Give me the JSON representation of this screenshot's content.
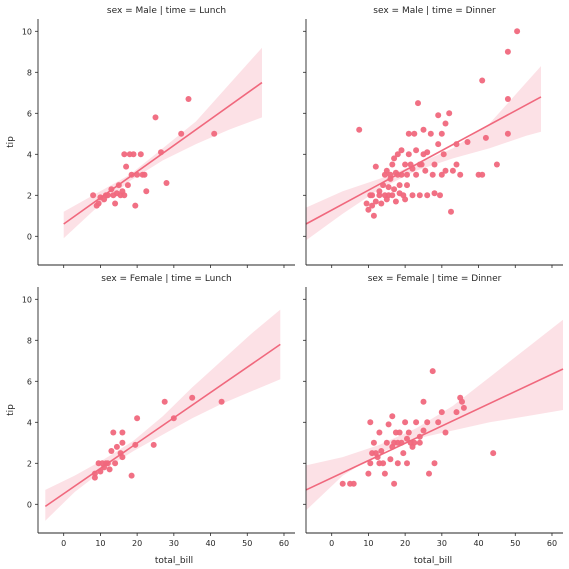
{
  "chart_data": {
    "type": "scatter",
    "xlabel": "total_bill",
    "ylabel": "tip",
    "xlim": [
      -7,
      63
    ],
    "ylim": [
      -1.4,
      10.6
    ],
    "xticks": [
      0,
      10,
      20,
      30,
      40,
      50,
      60
    ],
    "yticks": [
      0,
      2,
      4,
      6,
      8,
      10
    ],
    "colors": {
      "points": "#f0687d",
      "line": "#f0687d",
      "band": "#fbd7dd"
    },
    "facets": [
      {
        "title": "sex = Male | time = Lunch",
        "fit": {
          "x": [
            0,
            54
          ],
          "y": [
            0.6,
            7.5
          ]
        },
        "band": {
          "x": [
            0,
            9,
            18,
            27,
            36,
            45,
            54
          ],
          "lower": [
            -0.1,
            1.4,
            2.7,
            3.7,
            4.5,
            5.2,
            5.8
          ],
          "upper": [
            1.2,
            2.1,
            3.0,
            4.3,
            5.6,
            7.4,
            9.2
          ]
        },
        "points": [
          [
            8,
            2.0
          ],
          [
            9,
            1.5
          ],
          [
            9.5,
            1.6
          ],
          [
            10,
            1.9
          ],
          [
            11,
            1.8
          ],
          [
            11.5,
            2.0
          ],
          [
            12,
            2.0
          ],
          [
            13,
            2.3
          ],
          [
            13.5,
            2.0
          ],
          [
            14,
            1.6
          ],
          [
            14.5,
            2.1
          ],
          [
            15,
            2.5
          ],
          [
            15.5,
            2.0
          ],
          [
            16,
            2.2
          ],
          [
            16.5,
            2.0
          ],
          [
            16.5,
            4.0
          ],
          [
            17,
            3.4
          ],
          [
            17.5,
            2.5
          ],
          [
            18,
            4.0
          ],
          [
            18.5,
            3.0
          ],
          [
            19,
            4.0
          ],
          [
            19.5,
            1.5
          ],
          [
            20,
            3.0
          ],
          [
            21,
            4.0
          ],
          [
            21.5,
            3.0
          ],
          [
            22,
            3.0
          ],
          [
            22.5,
            2.2
          ],
          [
            25,
            5.8
          ],
          [
            26.5,
            4.1
          ],
          [
            28,
            2.6
          ],
          [
            32,
            5.0
          ],
          [
            34,
            6.7
          ],
          [
            41,
            5.0
          ]
        ]
      },
      {
        "title": "sex = Male | time = Dinner",
        "fit": {
          "x": [
            -7,
            57
          ],
          "y": [
            0.6,
            6.8
          ]
        },
        "band": {
          "x": [
            -7,
            3,
            13,
            23,
            33,
            43,
            53,
            57
          ],
          "lower": [
            -0.2,
            1.1,
            2.3,
            3.2,
            3.8,
            4.3,
            4.9,
            5.1
          ],
          "upper": [
            1.4,
            2.2,
            2.8,
            3.5,
            4.3,
            5.5,
            7.5,
            8.3
          ]
        },
        "points": [
          [
            7.5,
            5.2
          ],
          [
            9.5,
            1.6
          ],
          [
            10,
            1.3
          ],
          [
            10.5,
            2.0
          ],
          [
            11,
            1.5
          ],
          [
            11,
            2.0
          ],
          [
            11.5,
            1.0
          ],
          [
            12,
            3.4
          ],
          [
            12,
            1.7
          ],
          [
            13,
            2.0
          ],
          [
            13,
            2.2
          ],
          [
            13.5,
            1.6
          ],
          [
            14,
            2.5
          ],
          [
            14.5,
            3.0
          ],
          [
            14.5,
            2.0
          ],
          [
            15,
            1.8
          ],
          [
            15,
            3.2
          ],
          [
            15.5,
            2.4
          ],
          [
            15.5,
            2.0
          ],
          [
            16,
            3.0
          ],
          [
            16,
            2.8
          ],
          [
            16.5,
            3.5
          ],
          [
            16.5,
            2.0
          ],
          [
            17,
            3.8
          ],
          [
            17,
            2.3
          ],
          [
            17.5,
            1.7
          ],
          [
            17.5,
            3.1
          ],
          [
            18,
            3.0
          ],
          [
            18,
            4.0
          ],
          [
            18.5,
            2.5
          ],
          [
            18.5,
            2.1
          ],
          [
            19,
            4.2
          ],
          [
            19,
            3.0
          ],
          [
            19.5,
            2.0
          ],
          [
            20,
            3.5
          ],
          [
            20,
            1.8
          ],
          [
            20.5,
            2.5
          ],
          [
            20.5,
            3.0
          ],
          [
            21,
            5.0
          ],
          [
            21,
            4.0
          ],
          [
            21.5,
            3.5
          ],
          [
            22,
            2.0
          ],
          [
            22,
            3.3
          ],
          [
            22.5,
            5.0
          ],
          [
            23,
            4.2
          ],
          [
            23,
            3.0
          ],
          [
            23.5,
            6.5
          ],
          [
            24,
            2.0
          ],
          [
            24,
            3.5
          ],
          [
            24.5,
            3.5
          ],
          [
            25,
            4.0
          ],
          [
            25,
            5.2
          ],
          [
            25.5,
            3.2
          ],
          [
            26,
            4.1
          ],
          [
            26,
            2.0
          ],
          [
            27,
            5.0
          ],
          [
            27.5,
            3.0
          ],
          [
            28,
            2.1
          ],
          [
            28,
            3.5
          ],
          [
            29,
            5.9
          ],
          [
            29,
            4.5
          ],
          [
            29.5,
            2.0
          ],
          [
            30,
            5.0
          ],
          [
            30,
            3.0
          ],
          [
            30.5,
            4.0
          ],
          [
            31,
            5.5
          ],
          [
            31,
            3.2
          ],
          [
            32,
            6.0
          ],
          [
            32.5,
            1.2
          ],
          [
            33,
            3.2
          ],
          [
            34,
            4.5
          ],
          [
            34,
            3.5
          ],
          [
            35,
            3.0
          ],
          [
            37,
            4.6
          ],
          [
            40,
            3.0
          ],
          [
            41,
            3.0
          ],
          [
            41,
            7.6
          ],
          [
            42,
            4.8
          ],
          [
            45,
            3.5
          ],
          [
            48,
            5.0
          ],
          [
            48,
            9.0
          ],
          [
            48,
            6.7
          ],
          [
            50.5,
            10.0
          ]
        ]
      },
      {
        "title": "sex = Female | time = Lunch",
        "fit": {
          "x": [
            -5,
            59
          ],
          "y": [
            -0.1,
            7.8
          ]
        },
        "band": {
          "x": [
            -5,
            3,
            11,
            19,
            27,
            35,
            43,
            51,
            59
          ],
          "lower": [
            -0.8,
            0.6,
            1.7,
            2.6,
            3.4,
            4.2,
            4.9,
            5.5,
            6.1
          ],
          "upper": [
            0.7,
            1.4,
            2.2,
            3.1,
            4.3,
            5.7,
            7.0,
            8.3,
            9.5
          ]
        },
        "points": [
          [
            8.5,
            1.5
          ],
          [
            8.5,
            1.3
          ],
          [
            9.5,
            2.0
          ],
          [
            10,
            1.6
          ],
          [
            10.5,
            2.0
          ],
          [
            11,
            1.8
          ],
          [
            11.5,
            2.0
          ],
          [
            12,
            2.0
          ],
          [
            12.5,
            1.7
          ],
          [
            13,
            2.6
          ],
          [
            13.5,
            3.5
          ],
          [
            14,
            2.0
          ],
          [
            14.5,
            2.8
          ],
          [
            15.5,
            2.5
          ],
          [
            16,
            2.3
          ],
          [
            16,
            3.0
          ],
          [
            16,
            3.5
          ],
          [
            18.5,
            1.4
          ],
          [
            19.5,
            2.9
          ],
          [
            20,
            4.2
          ],
          [
            24.5,
            2.9
          ],
          [
            27.5,
            5.0
          ],
          [
            30,
            4.2
          ],
          [
            35,
            5.2
          ],
          [
            43,
            5.0
          ]
        ]
      },
      {
        "title": "sex = Female | time = Dinner",
        "fit": {
          "x": [
            -7,
            63
          ],
          "y": [
            0.7,
            6.6
          ]
        },
        "band": {
          "x": [
            -7,
            3,
            13,
            23,
            33,
            43,
            53,
            63
          ],
          "lower": [
            -0.3,
            1.4,
            2.5,
            3.2,
            3.6,
            4.0,
            4.3,
            4.6
          ],
          "upper": [
            1.9,
            2.3,
            2.9,
            3.7,
            4.8,
            6.2,
            7.6,
            9.0
          ]
        },
        "points": [
          [
            3,
            1.0
          ],
          [
            5,
            1.0
          ],
          [
            6,
            1.0
          ],
          [
            10,
            1.5
          ],
          [
            10.5,
            4.0
          ],
          [
            10.5,
            2.0
          ],
          [
            11,
            2.5
          ],
          [
            11.5,
            3.0
          ],
          [
            12,
            2.5
          ],
          [
            12.5,
            2.3
          ],
          [
            13,
            3.5
          ],
          [
            13,
            2.0
          ],
          [
            13.5,
            2.6
          ],
          [
            14,
            2.0
          ],
          [
            14.5,
            1.5
          ],
          [
            15,
            3.0
          ],
          [
            15.5,
            3.9
          ],
          [
            16,
            2.2
          ],
          [
            16.5,
            2.8
          ],
          [
            16.5,
            4.3
          ],
          [
            17,
            3.0
          ],
          [
            17,
            1.0
          ],
          [
            17.5,
            3.5
          ],
          [
            18,
            3.0
          ],
          [
            18,
            2.0
          ],
          [
            18.5,
            3.5
          ],
          [
            19,
            3.0
          ],
          [
            19.5,
            2.5
          ],
          [
            20,
            4.0
          ],
          [
            20.5,
            3.2
          ],
          [
            20.5,
            2.0
          ],
          [
            21,
            3.5
          ],
          [
            21.5,
            3.0
          ],
          [
            22,
            2.8
          ],
          [
            22.5,
            3.0
          ],
          [
            23,
            4.0
          ],
          [
            24,
            3.0
          ],
          [
            24,
            3.3
          ],
          [
            25,
            3.6
          ],
          [
            25,
            5.0
          ],
          [
            26,
            4.0
          ],
          [
            26.5,
            1.5
          ],
          [
            27.5,
            6.5
          ],
          [
            28,
            2.0
          ],
          [
            29,
            4.0
          ],
          [
            30,
            4.5
          ],
          [
            31,
            3.5
          ],
          [
            34,
            4.5
          ],
          [
            35,
            5.2
          ],
          [
            35.5,
            5.0
          ],
          [
            36,
            4.7
          ],
          [
            44,
            2.5
          ]
        ]
      }
    ]
  }
}
